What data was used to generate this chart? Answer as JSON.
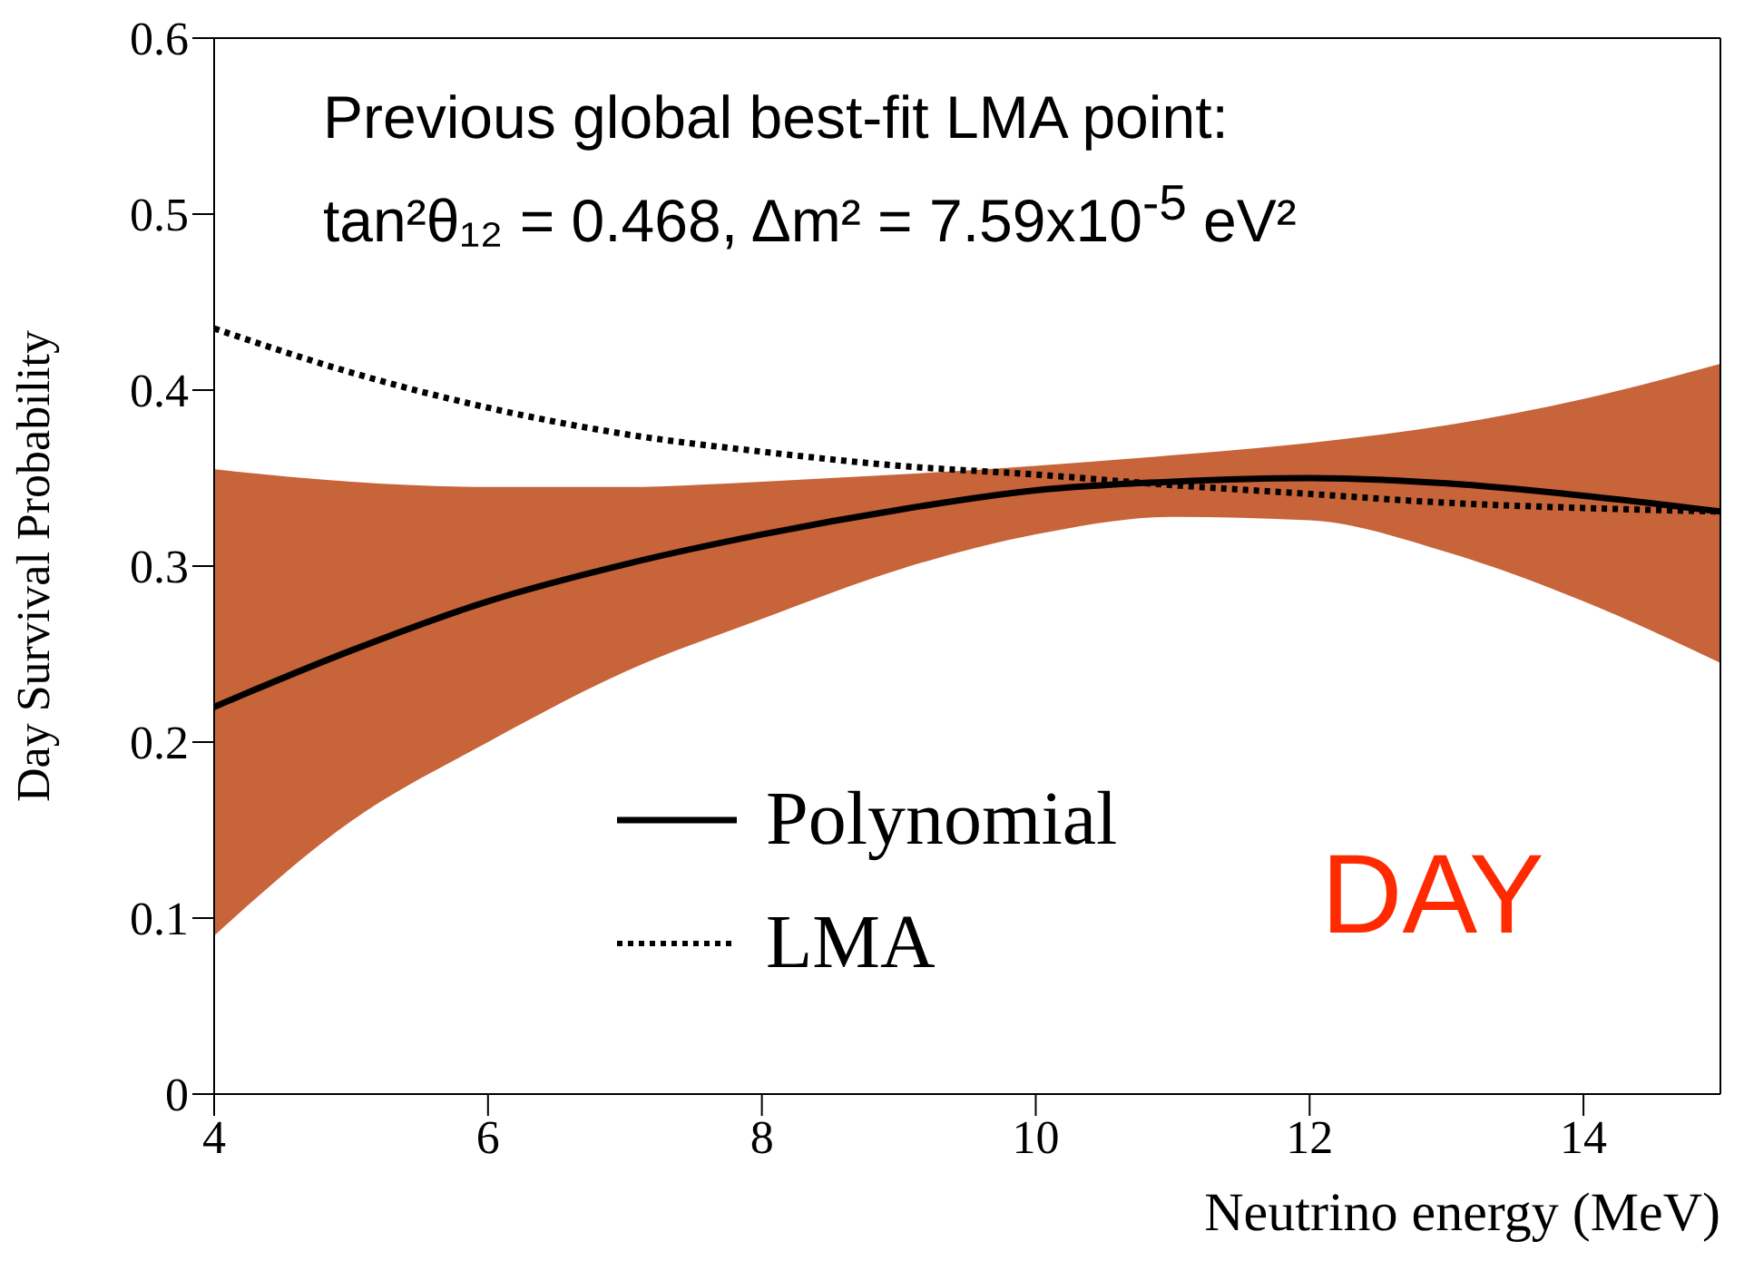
{
  "chart_data": {
    "type": "line",
    "xlabel": "Neutrino energy (MeV)",
    "ylabel": "Day Survival Probability",
    "x": [
      4,
      5,
      6,
      7,
      8,
      9,
      10,
      11,
      12,
      13,
      14,
      15
    ],
    "series": [
      {
        "name": "Polynomial",
        "color": "#000000",
        "line_style": "solid",
        "values": [
          0.22,
          0.252,
          0.28,
          0.301,
          0.318,
          0.332,
          0.343,
          0.348,
          0.35,
          0.347,
          0.34,
          0.331
        ],
        "lower": [
          0.09,
          0.155,
          0.2,
          0.24,
          0.27,
          0.298,
          0.318,
          0.328,
          0.326,
          0.308,
          0.28,
          0.245
        ],
        "upper": [
          0.355,
          0.348,
          0.345,
          0.345,
          0.348,
          0.352,
          0.357,
          0.363,
          0.37,
          0.38,
          0.395,
          0.415
        ]
      },
      {
        "name": "LMA",
        "color": "#000000",
        "line_style": "dotted",
        "values": [
          0.435,
          0.41,
          0.39,
          0.375,
          0.365,
          0.357,
          0.352,
          0.346,
          0.341,
          0.336,
          0.333,
          0.331
        ]
      }
    ],
    "xlim": [
      4,
      15
    ],
    "xticks": [
      4,
      6,
      8,
      10,
      12,
      14
    ],
    "ylim": [
      0,
      0.6
    ],
    "yticks": [
      0,
      0.1,
      0.2,
      0.3,
      0.4,
      0.5,
      0.6
    ],
    "marker": "none",
    "legend": "bottom left",
    "annotations": [
      "Previous global best-fit LMA point:",
      "tan²θ₁₂ = 0.468,   Δm² = 7.59x10$^{-5}$ eV²",
      "DAY"
    ]
  }
}
